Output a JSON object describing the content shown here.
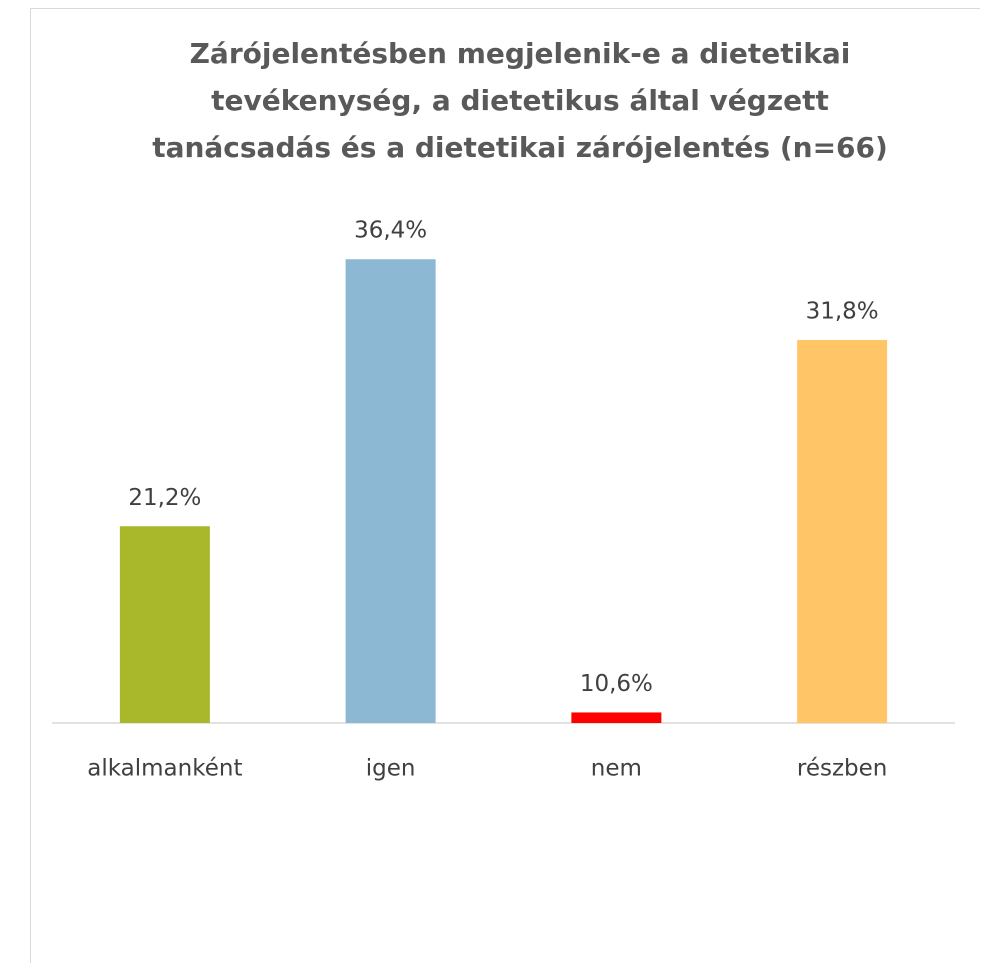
{
  "chart_data": {
    "type": "bar",
    "title": "Zárójelentésben megjelenik-e a dietetikai tevékenység, a dietetikus által végzett tanácsadás és a dietetikai zárójelentés (n=66)",
    "categories": [
      "alkalmanként",
      "igen",
      "nem",
      "részben"
    ],
    "values": [
      21.2,
      36.4,
      10.6,
      31.8
    ],
    "value_labels": [
      "21,2%",
      "36,4%",
      "10,6%",
      "31,8%"
    ],
    "colors": [
      "#a9b82a",
      "#8cb8d3",
      "#ff0000",
      "#ffc566"
    ],
    "ylim": [
      10,
      40
    ]
  }
}
